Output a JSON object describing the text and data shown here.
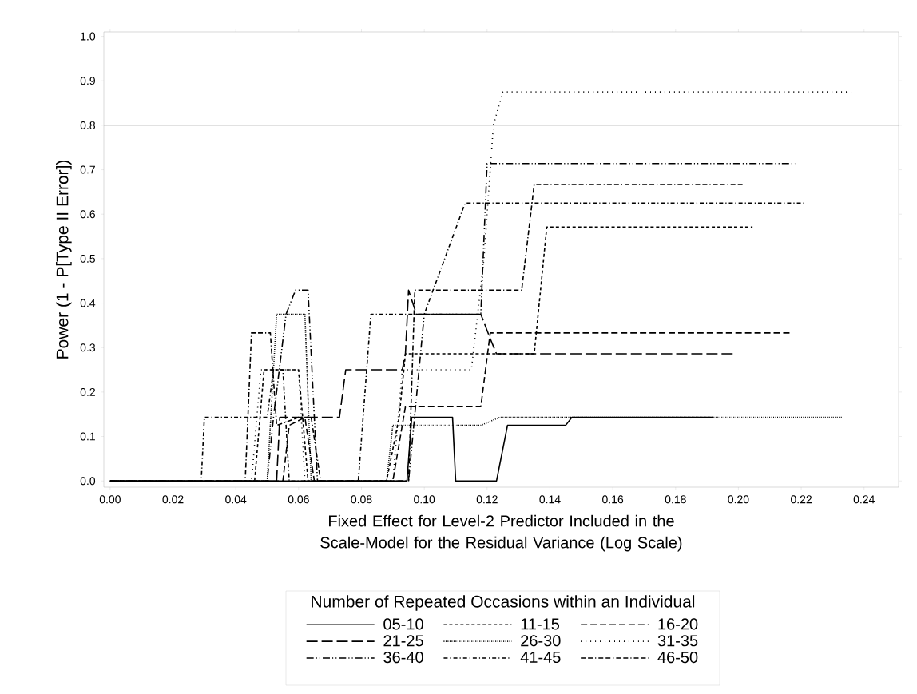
{
  "chart_data": {
    "type": "line",
    "xlabel": "Fixed Effect for Level-2 Predictor Included in the Scale-Model for the Residual Variance (Log Scale)",
    "ylabel": "Power (1 - P[Type II Error])",
    "legend_title": "Number of Repeated Occasions within an Individual",
    "legend": "bottom",
    "xlim": [
      -0.002,
      0.251
    ],
    "ylim": [
      -0.014,
      1.01
    ],
    "xticks": [
      {
        "value": 0,
        "label": "0.00"
      },
      {
        "value": 0.02,
        "label": "0.02"
      },
      {
        "value": 0.04,
        "label": "0.04"
      },
      {
        "value": 0.06,
        "label": "0.06"
      },
      {
        "value": 0.08,
        "label": "0.08"
      },
      {
        "value": 0.1,
        "label": "0.10"
      },
      {
        "value": 0.12,
        "label": "0.12"
      },
      {
        "value": 0.14,
        "label": "0.14"
      },
      {
        "value": 0.16,
        "label": "0.16"
      },
      {
        "value": 0.18,
        "label": "0.18"
      },
      {
        "value": 0.2,
        "label": "0.20"
      },
      {
        "value": 0.22,
        "label": "0.22"
      },
      {
        "value": 0.24,
        "label": "0.24"
      }
    ],
    "yticks": [
      {
        "value": 0,
        "label": "0.0"
      },
      {
        "value": 0.1,
        "label": "0.1"
      },
      {
        "value": 0.2,
        "label": "0.2"
      },
      {
        "value": 0.3,
        "label": "0.3"
      },
      {
        "value": 0.4,
        "label": "0.4"
      },
      {
        "value": 0.5,
        "label": "0.5"
      },
      {
        "value": 0.6,
        "label": "0.6"
      },
      {
        "value": 0.7,
        "label": "0.7"
      },
      {
        "value": 0.8,
        "label": "0.8"
      },
      {
        "value": 0.9,
        "label": "0.9"
      },
      {
        "value": 1,
        "label": "1.0"
      }
    ],
    "ref_lines": [
      {
        "axis": "y",
        "value": 0.8,
        "color": "#a0a0a0"
      }
    ],
    "series": [
      {
        "name": "05-10",
        "color": "#000000",
        "line_style": "solid",
        "x": [
          0,
          0.0945,
          0.096,
          0.109,
          0.11,
          0.123,
          0.1265,
          0.145,
          0.147,
          0.192
        ],
        "values": [
          0,
          0,
          0.143,
          0.143,
          0,
          0,
          0.125,
          0.125,
          0.143,
          0.143
        ]
      },
      {
        "name": "11-15",
        "color": "#000000",
        "line_style": "shortdash",
        "x": [
          0,
          0.046,
          0.049,
          0.06,
          0.063,
          0.088,
          0.092,
          0.094,
          0.135,
          0.139,
          0.2045
        ],
        "values": [
          0,
          0,
          0.25,
          0.25,
          0,
          0,
          0.143,
          0.286,
          0.286,
          0.571,
          0.571
        ]
      },
      {
        "name": "16-20",
        "color": "#000000",
        "line_style": "dash",
        "x": [
          0,
          0.055,
          0.057,
          0.062,
          0.065,
          0.09,
          0.094,
          0.118,
          0.121,
          0.2167
        ],
        "values": [
          0,
          0,
          0.125,
          0.143,
          0,
          0,
          0.167,
          0.167,
          0.333,
          0.333
        ]
      },
      {
        "name": "21-25",
        "color": "#000000",
        "line_style": "longdash",
        "x": [
          0,
          0.053,
          0.054,
          0.073,
          0.075,
          0.093,
          0.094,
          0.095,
          0.0975,
          0.118,
          0.121,
          0.123,
          0.199
        ],
        "values": [
          0,
          0,
          0.143,
          0.143,
          0.25,
          0.25,
          0.286,
          0.429,
          0.375,
          0.375,
          0.32,
          0.286,
          0.286
        ]
      },
      {
        "name": "26-30",
        "color": "#000000",
        "line_style": "dotted",
        "x": [
          0,
          0.05,
          0.053,
          0.062,
          0.064,
          0.088,
          0.09,
          0.118,
          0.124,
          0.233
        ],
        "values": [
          0,
          0,
          0.375,
          0.375,
          0,
          0,
          0.125,
          0.125,
          0.143,
          0.143
        ]
      },
      {
        "name": "31-35",
        "color": "#000000",
        "line_style": "sparsedot",
        "x": [
          0,
          0.045,
          0.048,
          0.06,
          0.062,
          0.09,
          0.093,
          0.115,
          0.119,
          0.122,
          0.125,
          0.236
        ],
        "values": [
          0,
          0,
          0.25,
          0.25,
          0,
          0,
          0.25,
          0.25,
          0.5,
          0.8,
          0.875,
          0.875
        ]
      },
      {
        "name": "36-40",
        "color": "#000000",
        "line_style": "dashdotdot",
        "x": [
          0,
          0.05,
          0.052,
          0.056,
          0.059,
          0.063,
          0.066,
          0.095,
          0.1,
          0.118,
          0.12,
          0.218
        ],
        "values": [
          0,
          0,
          0.143,
          0.375,
          0.429,
          0.429,
          0,
          0,
          0.375,
          0.375,
          0.714,
          0.714
        ]
      },
      {
        "name": "41-45",
        "color": "#000000",
        "line_style": "dashdot",
        "x": [
          0,
          0.029,
          0.03,
          0.05,
          0.052,
          0.055,
          0.057,
          0.079,
          0.083,
          0.1,
          0.113,
          0.221
        ],
        "values": [
          0,
          0,
          0.143,
          0.143,
          0.25,
          0.25,
          0,
          0,
          0.375,
          0.375,
          0.625,
          0.625
        ]
      },
      {
        "name": "46-50",
        "color": "#000000",
        "line_style": "dashdashdot",
        "x": [
          0,
          0.043,
          0.045,
          0.051,
          0.053,
          0.06,
          0.064,
          0.067,
          0.095,
          0.097,
          0.131,
          0.135,
          0.202
        ],
        "values": [
          0,
          0,
          0.333,
          0.333,
          0.125,
          0.143,
          0.143,
          0,
          0,
          0.429,
          0.429,
          0.667,
          0.667
        ]
      }
    ]
  }
}
